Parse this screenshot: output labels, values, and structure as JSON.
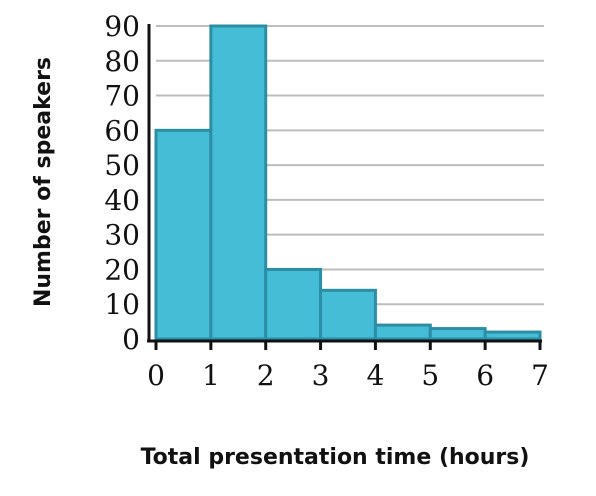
{
  "chart_data": {
    "type": "bar",
    "title": "",
    "xlabel": "Total presentation time (hours)",
    "ylabel": "Number of speakers",
    "bin_edges": [
      0,
      1,
      2,
      3,
      4,
      5,
      6,
      7
    ],
    "values": [
      60,
      90,
      20,
      14,
      4,
      3,
      2
    ],
    "x_ticks": [
      "0",
      "1",
      "2",
      "3",
      "4",
      "5",
      "6",
      "7"
    ],
    "y_ticks": [
      "0",
      "10",
      "20",
      "30",
      "40",
      "50",
      "60",
      "70",
      "80",
      "90"
    ],
    "xlim": [
      0,
      7
    ],
    "ylim": [
      0,
      90
    ],
    "grid": "horizontal",
    "legend": "none",
    "bar_color": "#45bdd6",
    "bar_edge_color": "#2c8ea5",
    "grid_color": "#bdbdbd",
    "axis_color": "#111111"
  }
}
